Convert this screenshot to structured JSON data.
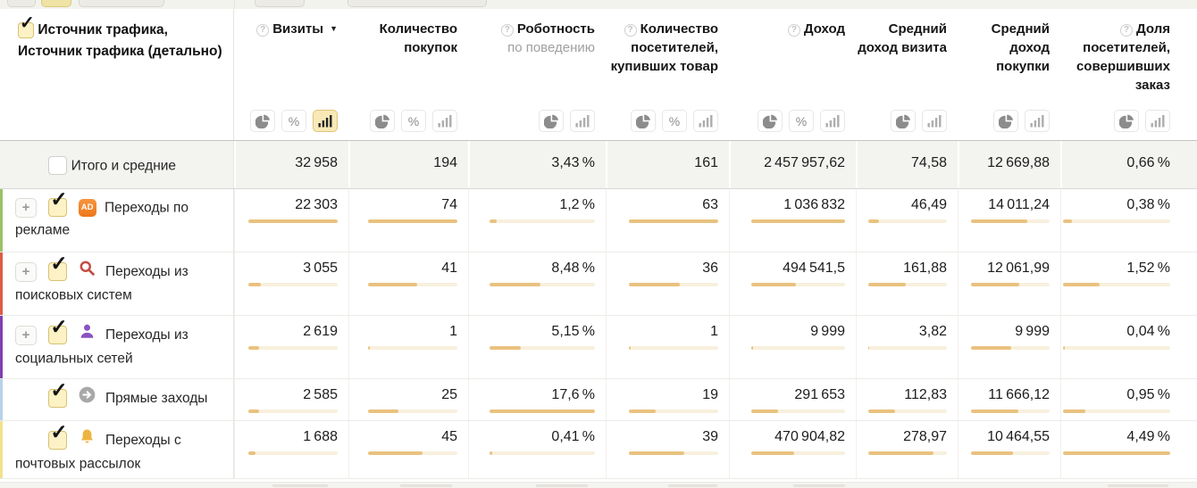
{
  "icons": {
    "help": "?",
    "sort_desc": "▼",
    "expand": "+",
    "check": "✓",
    "percent": "%",
    "ad_label": "AD"
  },
  "header": {
    "source_column": {
      "checked": true,
      "line1": "Источник трафика,",
      "line2": "Источник трафика (детально)"
    },
    "columns": [
      {
        "label": "Визиты",
        "help": true,
        "sort": "desc",
        "toggles": [
          "pie",
          "percent",
          "bars"
        ],
        "active": "bars",
        "scale": 22303
      },
      {
        "label": "Количество покупок",
        "help": false,
        "sort": null,
        "toggles": [
          "pie",
          "percent",
          "bars"
        ],
        "active": null,
        "scale": 74
      },
      {
        "label": "Роботность",
        "sublabel": "по поведению",
        "help": true,
        "sort": null,
        "toggles": [
          "pie",
          "bars"
        ],
        "active": null,
        "scale": 17.6
      },
      {
        "label": "Количество посетителей, купивших товар",
        "help": true,
        "sort": null,
        "toggles": [
          "pie",
          "percent",
          "bars"
        ],
        "active": null,
        "scale": 63
      },
      {
        "label": "Доход",
        "help": true,
        "sort": null,
        "toggles": [
          "pie",
          "percent",
          "bars"
        ],
        "active": null,
        "scale": 1036832
      },
      {
        "label": "Средний доход визита",
        "help": false,
        "sort": null,
        "toggles": [
          "pie",
          "bars"
        ],
        "active": null,
        "scale": 336
      },
      {
        "label": "Средний доход покупки",
        "help": false,
        "sort": null,
        "toggles": [
          "pie",
          "bars"
        ],
        "active": null,
        "scale": 19500
      },
      {
        "label": "Доля посетителей, совершивших заказ",
        "help": true,
        "sort": null,
        "toggles": [
          "pie",
          "bars"
        ],
        "active": null,
        "scale": 4.49
      }
    ]
  },
  "rows": [
    {
      "label": "Итого и средние",
      "total": true,
      "checked": false,
      "expandable": false,
      "icon": null,
      "stripe": null,
      "cells": [
        {
          "text": "32 958",
          "value": 32958
        },
        {
          "text": "194",
          "value": 194
        },
        {
          "text": "3,43 %",
          "value": 3.43
        },
        {
          "text": "161",
          "value": 161
        },
        {
          "text": "2 457 957,62",
          "value": 2457957.62
        },
        {
          "text": "74,58",
          "value": 74.58
        },
        {
          "text": "12 669,88",
          "value": 12669.88
        },
        {
          "text": "0,66 %",
          "value": 0.66
        }
      ]
    },
    {
      "label": "Переходы по рекламе",
      "total": false,
      "checked": true,
      "expandable": true,
      "icon": "ad",
      "stripe": "#9cc068",
      "cells": [
        {
          "text": "22 303",
          "value": 22303
        },
        {
          "text": "74",
          "value": 74
        },
        {
          "text": "1,2 %",
          "value": 1.2
        },
        {
          "text": "63",
          "value": 63
        },
        {
          "text": "1 036 832",
          "value": 1036832
        },
        {
          "text": "46,49",
          "value": 46.49
        },
        {
          "text": "14 011,24",
          "value": 14011.24
        },
        {
          "text": "0,38 %",
          "value": 0.38
        }
      ]
    },
    {
      "label": "Переходы из поисковых систем",
      "total": false,
      "checked": true,
      "expandable": true,
      "icon": "search",
      "stripe": "#dd5b45",
      "cells": [
        {
          "text": "3 055",
          "value": 3055
        },
        {
          "text": "41",
          "value": 41
        },
        {
          "text": "8,48 %",
          "value": 8.48
        },
        {
          "text": "36",
          "value": 36
        },
        {
          "text": "494 541,5",
          "value": 494541.5
        },
        {
          "text": "161,88",
          "value": 161.88
        },
        {
          "text": "12 061,99",
          "value": 12061.99
        },
        {
          "text": "1,52 %",
          "value": 1.52
        }
      ]
    },
    {
      "label": "Переходы из социальных сетей",
      "total": false,
      "checked": true,
      "expandable": true,
      "icon": "social",
      "stripe": "#7f3fad",
      "cells": [
        {
          "text": "2 619",
          "value": 2619
        },
        {
          "text": "1",
          "value": 1
        },
        {
          "text": "5,15 %",
          "value": 5.15
        },
        {
          "text": "1",
          "value": 1
        },
        {
          "text": "9 999",
          "value": 9999
        },
        {
          "text": "3,82",
          "value": 3.82
        },
        {
          "text": "9 999",
          "value": 9999
        },
        {
          "text": "0,04 %",
          "value": 0.04
        }
      ]
    },
    {
      "label": "Прямые заходы",
      "total": false,
      "checked": true,
      "expandable": false,
      "icon": "direct",
      "stripe": "#b5d2ea",
      "cells": [
        {
          "text": "2 585",
          "value": 2585
        },
        {
          "text": "25",
          "value": 25
        },
        {
          "text": "17,6 %",
          "value": 17.6
        },
        {
          "text": "19",
          "value": 19
        },
        {
          "text": "291 653",
          "value": 291653
        },
        {
          "text": "112,83",
          "value": 112.83
        },
        {
          "text": "11 666,12",
          "value": 11666.12
        },
        {
          "text": "0,95 %",
          "value": 0.95
        }
      ]
    },
    {
      "label": "Переходы с почтовых рассылок",
      "total": false,
      "checked": true,
      "expandable": false,
      "icon": "email",
      "stripe": "#f3e08e",
      "cells": [
        {
          "text": "1 688",
          "value": 1688
        },
        {
          "text": "45",
          "value": 45
        },
        {
          "text": "0,41 %",
          "value": 0.41
        },
        {
          "text": "39",
          "value": 39
        },
        {
          "text": "470 904,82",
          "value": 470904.82
        },
        {
          "text": "278,97",
          "value": 278.97
        },
        {
          "text": "10 464,55",
          "value": 10464.55
        },
        {
          "text": "4,49 %",
          "value": 4.49
        }
      ]
    }
  ]
}
